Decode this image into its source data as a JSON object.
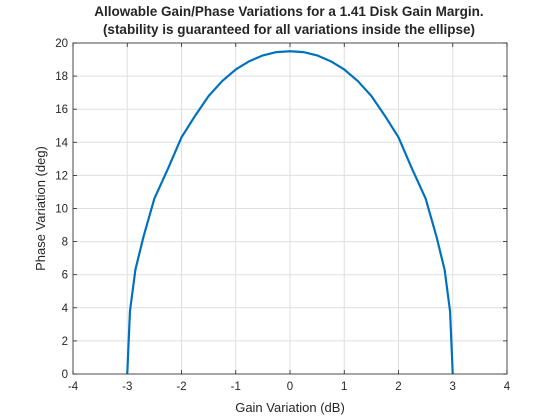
{
  "chart_data": {
    "type": "line",
    "title": "Allowable Gain/Phase Variations for a 1.41 Disk Gain Margin.",
    "subtitle": "(stability is guaranteed for all variations inside the ellipse)",
    "xlabel": "Gain Variation (dB)",
    "ylabel": "Phase Variation (deg)",
    "xlim": [
      -4,
      4
    ],
    "ylim": [
      0,
      20
    ],
    "xticks": [
      -4,
      -3,
      -2,
      -1,
      0,
      1,
      2,
      3,
      4
    ],
    "yticks": [
      0,
      2,
      4,
      6,
      8,
      10,
      12,
      14,
      16,
      18,
      20
    ],
    "xtick_labels": [
      "-4",
      "-3",
      "-2",
      "-1",
      "0",
      "1",
      "2",
      "3",
      "4"
    ],
    "ytick_labels": [
      "0",
      "2",
      "4",
      "6",
      "8",
      "10",
      "12",
      "14",
      "16",
      "18",
      "20"
    ],
    "grid": true,
    "series": [
      {
        "color": "#0072BD",
        "x": [
          -3.0,
          -2.95,
          -2.85,
          -2.7,
          -2.5,
          -2.25,
          -2.0,
          -1.75,
          -1.5,
          -1.25,
          -1.0,
          -0.75,
          -0.5,
          -0.25,
          0.0,
          0.25,
          0.5,
          0.75,
          1.0,
          1.25,
          1.5,
          1.75,
          2.0,
          2.25,
          2.5,
          2.7,
          2.85,
          2.95,
          3.0
        ],
        "y": [
          0.0,
          3.8,
          6.3,
          8.3,
          10.6,
          12.4,
          14.3,
          15.6,
          16.8,
          17.7,
          18.4,
          18.9,
          19.25,
          19.45,
          19.5,
          19.45,
          19.25,
          18.9,
          18.4,
          17.7,
          16.8,
          15.6,
          14.3,
          12.4,
          10.6,
          8.3,
          6.3,
          3.8,
          0.0
        ]
      }
    ]
  }
}
